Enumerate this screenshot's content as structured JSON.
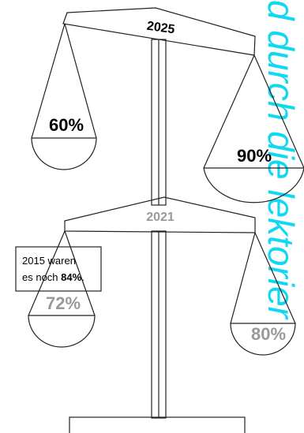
{
  "side_text": "d durch die lektorier",
  "scales": [
    {
      "year": "2025",
      "left": "60%",
      "right": "90%"
    },
    {
      "year": "2021",
      "left": "72%",
      "right": "80%"
    }
  ],
  "note": {
    "line1": "2015 waren",
    "line2": "es noch ",
    "bold": "84%",
    "end": "."
  }
}
